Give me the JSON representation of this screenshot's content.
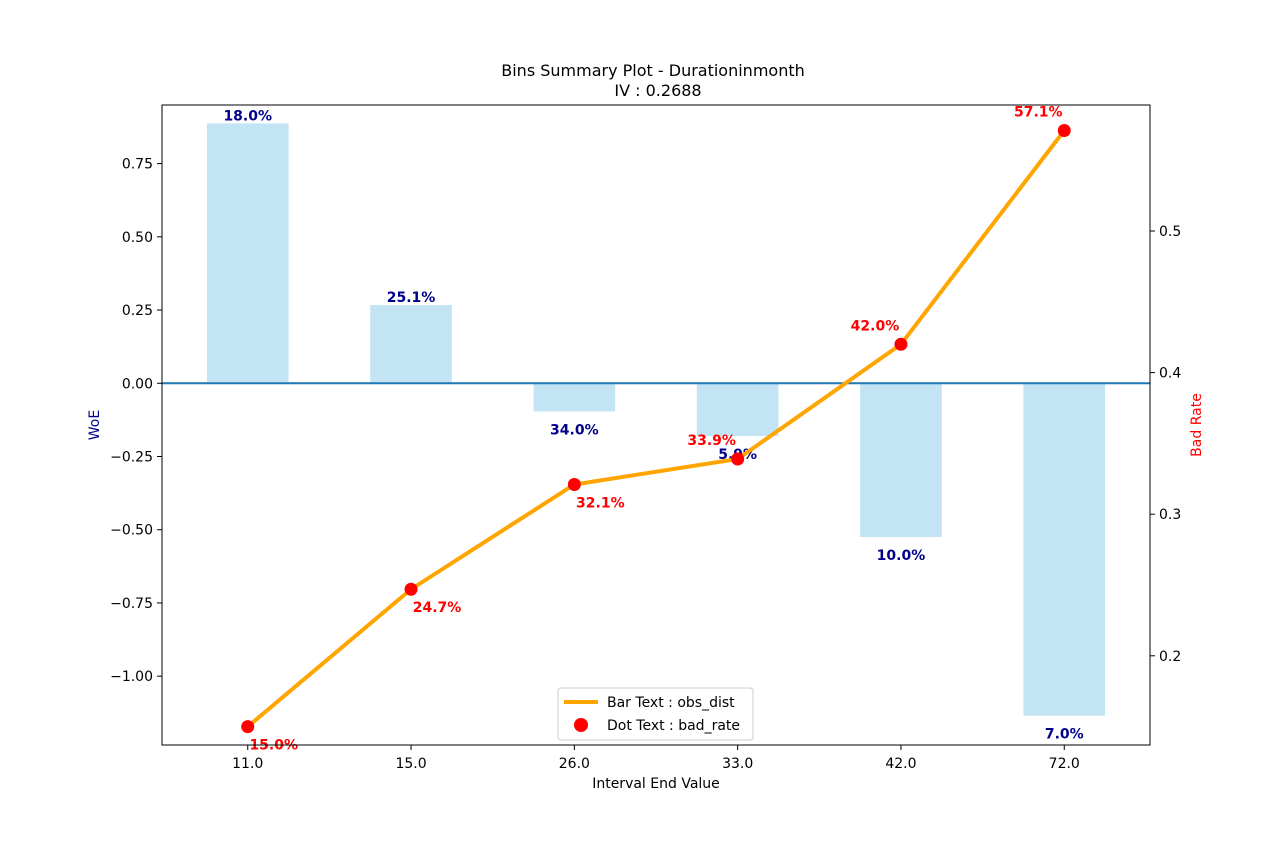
{
  "chart_data": {
    "type": "bar",
    "title": "Bins Summary Plot - Durationinmonth",
    "subtitle": "IV : 0.2688",
    "xlabel": "Interval End Value",
    "ylabel": "WoE",
    "y2label": "Bad Rate",
    "categories": [
      "11.0",
      "15.0",
      "26.0",
      "33.0",
      "42.0",
      "72.0"
    ],
    "ylim": [
      -1.235,
      0.95
    ],
    "y2lim": [
      0.137,
      0.589
    ],
    "yticks": [
      "0.75",
      "0.50",
      "0.25",
      "0.00",
      "−0.25",
      "−0.50",
      "−0.75",
      "−1.00"
    ],
    "yticks_values": [
      0.75,
      0.5,
      0.25,
      0.0,
      -0.25,
      -0.5,
      -0.75,
      -1.0
    ],
    "y2ticks": [
      "0.5",
      "0.4",
      "0.3",
      "0.2"
    ],
    "y2ticks_values": [
      0.5,
      0.4,
      0.3,
      0.2
    ],
    "series": [
      {
        "name": "WoE",
        "kind": "bar",
        "color": "#c2e4f4",
        "values": [
          0.887,
          0.267,
          -0.096,
          -0.18,
          -0.525,
          -1.135
        ],
        "labels": [
          "18.0%",
          "25.1%",
          "34.0%",
          "5.9%",
          "10.0%",
          "7.0%"
        ]
      },
      {
        "name": "bad_rate",
        "kind": "line",
        "color": "#ffa500",
        "dot_color": "#ff0000",
        "values": [
          0.15,
          0.247,
          0.321,
          0.339,
          0.42,
          0.571
        ],
        "labels": [
          "15.0%",
          "24.7%",
          "32.1%",
          "33.9%",
          "42.0%",
          "57.1%"
        ]
      }
    ],
    "zero_line_color": "#1f77b4",
    "grid": false,
    "legend": {
      "position": "bottom-center",
      "entries": [
        "Bar Text : obs_dist",
        "Dot Text : bad_rate"
      ]
    }
  }
}
